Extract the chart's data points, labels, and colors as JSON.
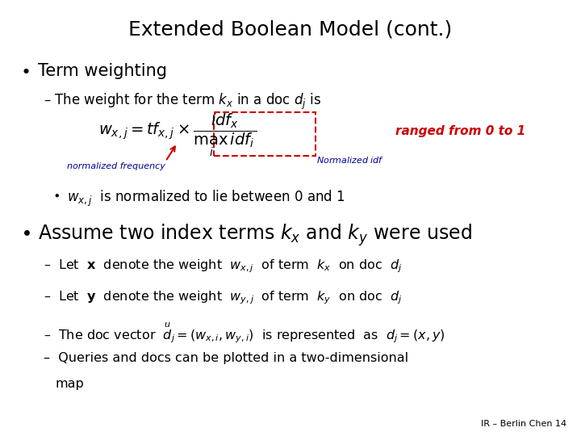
{
  "title": "Extended Boolean Model (cont.)",
  "background_color": "#ffffff",
  "title_fontsize": 18,
  "title_color": "#000000",
  "footer": "IR – Berlin Chen 14",
  "footer_fontsize": 8,
  "content": {
    "bullet1_text": "Term weighting",
    "bullet1_sub": "– The weight for the term $k_x$ in a doc $d_j$ is",
    "formula_label": "normalized frequency",
    "ranged_text": "ranged from 0 to 1",
    "normalized_idf_label": "Normalized $idf$",
    "normalized_freq_label": "normalized frequency",
    "sub_bullet": "$w_{x,j}$  is normalized to lie between 0 and 1",
    "bullet2_text": "Assume two index terms $k_x$ and $k_y$ were used",
    "sub1": "–  Let  $\\mathbf{x}$  denote the weight  $w_{x,j}$  of term  $k_x$  on doc  $d_j$",
    "sub2": "–  Let  $\\mathbf{y}$  denote the weight  $w_{y,j}$  of term  $k_y$  on doc  $d_j$",
    "sub3": "–  The doc vector  $\\overset{u}{d}_j = (w_{x,i}, w_{y,i})$  is represented  as  $d_j = (x, y)$",
    "sub4": "–  Queries and docs can be plotted in a two-dimensional",
    "sub4b": "     map"
  }
}
